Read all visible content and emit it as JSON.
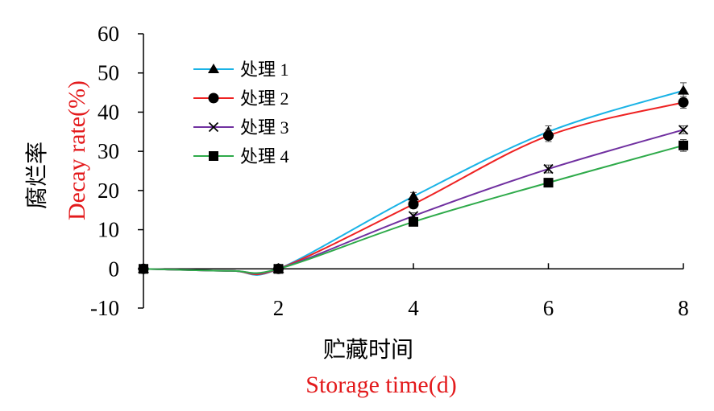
{
  "colors": {
    "axis": "#000000",
    "english_title": "#e31a1c",
    "series": [
      "#1ab3e6",
      "#ee2222",
      "#7030a0",
      "#2eaa4a"
    ]
  },
  "chart_data": {
    "type": "line",
    "x": [
      0,
      2,
      4,
      6,
      8
    ],
    "xticks": [
      "2",
      "4",
      "6",
      "8"
    ],
    "yticks": [
      "60",
      "50",
      "40",
      "30",
      "20",
      "10",
      "0",
      "-10"
    ],
    "ylim": [
      -10,
      60
    ],
    "xlim": [
      0,
      8
    ],
    "smoothed": true,
    "grid": false,
    "legend_position": "top-left",
    "xlabel_cn": "贮藏时间",
    "xlabel_en": "Storage time(d)",
    "ylabel_cn": "腐烂率",
    "ylabel_en": "Decay rate(%)",
    "series": [
      {
        "name": "处理 1",
        "marker": "triangle",
        "values": [
          0,
          0,
          18.5,
          35,
          45.5
        ],
        "errors": [
          0,
          0,
          1,
          1.5,
          2
        ]
      },
      {
        "name": "处理 2",
        "marker": "circle",
        "values": [
          0,
          0,
          16.5,
          34,
          42.5
        ],
        "errors": [
          0,
          0,
          1,
          1.5,
          1.5
        ]
      },
      {
        "name": "处理 3",
        "marker": "x",
        "values": [
          0,
          0,
          13.5,
          25.5,
          35.5
        ],
        "errors": [
          0,
          0,
          0.8,
          1,
          1
        ]
      },
      {
        "name": "处理 4",
        "marker": "square",
        "values": [
          0,
          0,
          12,
          22,
          31.5
        ],
        "errors": [
          0,
          0,
          0.8,
          1,
          1.5
        ]
      }
    ]
  }
}
